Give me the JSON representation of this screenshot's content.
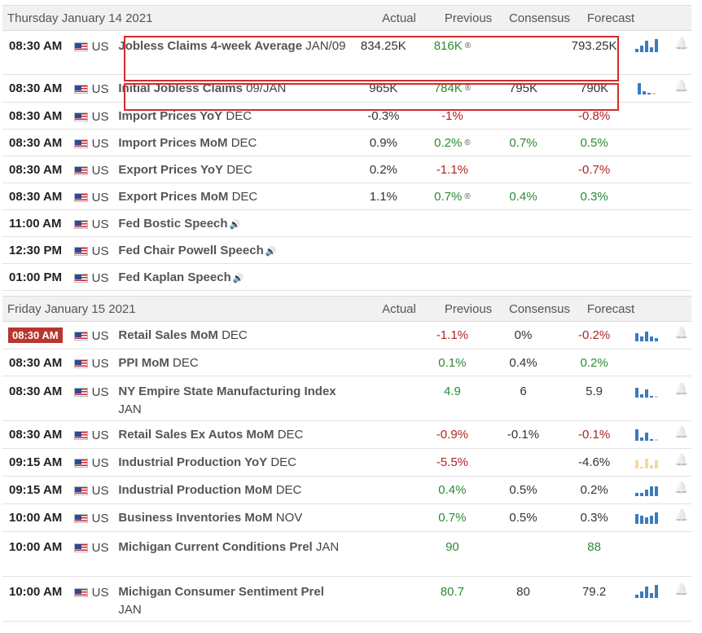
{
  "days": [
    {
      "date": "Thursday January 14 2021",
      "columns": {
        "actual": "Actual",
        "previous": "Previous",
        "consensus": "Consensus",
        "forecast": "Forecast"
      },
      "rows": [
        {
          "time": "08:30 AM",
          "country": "US",
          "event_bold": "Jobless Claims 4-week Average",
          "event_rest": "JAN/09",
          "actual": "834.25K",
          "previous": "816K",
          "previous_revised": true,
          "previous_color": "green",
          "consensus": "",
          "forecast": "793.25K",
          "forecast_color": "dark",
          "chart": true,
          "bell": true
        },
        {
          "time": "08:30 AM",
          "country": "US",
          "event_bold": "Initial Jobless Claims",
          "event_rest": "09/JAN",
          "actual": "965K",
          "previous": "784K",
          "previous_revised": true,
          "previous_color": "green",
          "consensus": "795K",
          "forecast": "790K",
          "forecast_color": "dark",
          "chart": true,
          "bell": true
        },
        {
          "time": "08:30 AM",
          "country": "US",
          "event_bold": "Import Prices YoY",
          "event_rest": "DEC",
          "actual": "-0.3%",
          "previous": "-1%",
          "previous_color": "red",
          "consensus": "",
          "forecast": "-0.8%",
          "forecast_color": "red"
        },
        {
          "time": "08:30 AM",
          "country": "US",
          "event_bold": "Import Prices MoM",
          "event_rest": "DEC",
          "actual": "0.9%",
          "previous": "0.2%",
          "previous_revised": true,
          "previous_color": "green",
          "consensus": "0.7%",
          "forecast": "0.5%",
          "forecast_color": "green"
        },
        {
          "time": "08:30 AM",
          "country": "US",
          "event_bold": "Export Prices YoY",
          "event_rest": "DEC",
          "actual": "0.2%",
          "previous": "-1.1%",
          "previous_color": "red",
          "consensus": "",
          "forecast": "-0.7%",
          "forecast_color": "red"
        },
        {
          "time": "08:30 AM",
          "country": "US",
          "event_bold": "Export Prices MoM",
          "event_rest": "DEC",
          "actual": "1.1%",
          "previous": "0.7%",
          "previous_revised": true,
          "previous_color": "green",
          "consensus": "0.4%",
          "forecast": "0.3%",
          "forecast_color": "green"
        },
        {
          "time": "11:00 AM",
          "country": "US",
          "event_bold": "Fed Bostic Speech",
          "event_rest": "",
          "speech": true
        },
        {
          "time": "12:30 PM",
          "country": "US",
          "event_bold": "Fed Chair Powell Speech",
          "event_rest": "",
          "speech": true
        },
        {
          "time": "01:00 PM",
          "country": "US",
          "event_bold": "Fed Kaplan Speech",
          "event_rest": "",
          "speech": true
        }
      ]
    },
    {
      "date": "Friday January 15 2021",
      "columns": {
        "actual": "Actual",
        "previous": "Previous",
        "consensus": "Consensus",
        "forecast": "Forecast"
      },
      "rows": [
        {
          "time": "08:30 AM",
          "time_badge": true,
          "country": "US",
          "event_bold": "Retail Sales MoM",
          "event_rest": "DEC",
          "actual": "",
          "previous": "-1.1%",
          "previous_color": "red",
          "consensus": "0%",
          "forecast": "-0.2%",
          "forecast_color": "red",
          "chart": true,
          "bell": true
        },
        {
          "time": "08:30 AM",
          "country": "US",
          "event_bold": "PPI MoM",
          "event_rest": "DEC",
          "actual": "",
          "previous": "0.1%",
          "previous_color": "green",
          "consensus": "0.4%",
          "forecast": "0.2%",
          "forecast_color": "green"
        },
        {
          "time": "08:30 AM",
          "country": "US",
          "event_bold": "NY Empire State Manufacturing Index",
          "event_rest": "JAN",
          "actual": "",
          "previous": "4.9",
          "previous_color": "green",
          "consensus": "6",
          "forecast": "5.9",
          "forecast_color": "dark",
          "chart": true,
          "bell": true
        },
        {
          "time": "08:30 AM",
          "country": "US",
          "event_bold": "Retail Sales Ex Autos MoM",
          "event_rest": "DEC",
          "actual": "",
          "previous": "-0.9%",
          "previous_color": "red",
          "consensus": "-0.1%",
          "forecast": "-0.1%",
          "forecast_color": "red",
          "chart": true,
          "bell": true
        },
        {
          "time": "09:15 AM",
          "country": "US",
          "event_bold": "Industrial Production YoY",
          "event_rest": "DEC",
          "actual": "",
          "previous": "-5.5%",
          "previous_color": "red",
          "consensus": "",
          "forecast": "-4.6%",
          "forecast_color": "dark",
          "chart": true,
          "chart_color": "#f5d7a1",
          "bell": true
        },
        {
          "time": "09:15 AM",
          "country": "US",
          "event_bold": "Industrial Production MoM",
          "event_rest": "DEC",
          "actual": "",
          "previous": "0.4%",
          "previous_color": "green",
          "consensus": "0.5%",
          "forecast": "0.2%",
          "forecast_color": "dark",
          "chart": true,
          "bell": true
        },
        {
          "time": "10:00 AM",
          "country": "US",
          "event_bold": "Business Inventories MoM",
          "event_rest": "NOV",
          "actual": "",
          "previous": "0.7%",
          "previous_color": "green",
          "consensus": "0.5%",
          "forecast": "0.3%",
          "forecast_color": "dark",
          "chart": true,
          "bell": true
        },
        {
          "time": "10:00 AM",
          "country": "US",
          "event_bold": "Michigan Current Conditions Prel",
          "event_rest": "JAN",
          "actual": "",
          "previous": "90",
          "previous_color": "green",
          "consensus": "",
          "forecast": "88",
          "forecast_color": "green"
        },
        {
          "time": "10:00 AM",
          "country": "US",
          "event_bold": "Michigan Consumer Sentiment Prel",
          "event_rest": "JAN",
          "actual": "",
          "previous": "80.7",
          "previous_color": "green",
          "consensus": "80",
          "forecast": "79.2",
          "forecast_color": "dark",
          "chart": true,
          "bell": true
        }
      ]
    }
  ],
  "icons": {
    "revised": "revised-icon",
    "speech": "speaker-icon",
    "bell": "bell-icon",
    "flag": "us-flag-icon",
    "chart": "mini-bar-chart-icon"
  },
  "colors": {
    "green": "#2d8a34",
    "red": "#b22323",
    "chart": "#3a7bbf",
    "highlight": "#d22b2b",
    "badge": "#b8372d"
  }
}
